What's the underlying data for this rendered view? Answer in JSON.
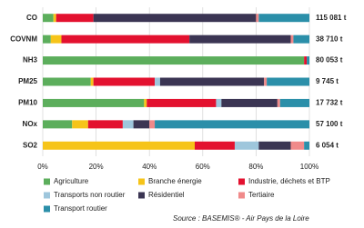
{
  "chart_data": {
    "type": "stacked-bar-horizontal",
    "categories": [
      "CO",
      "COVNM",
      "NH3",
      "PM25",
      "PM10",
      "NOx",
      "SO2"
    ],
    "totals": [
      "115 081 t",
      "38 710 t",
      "80 053 t",
      "9 745 t",
      "17 732 t",
      "57 100 t",
      "6 054 t"
    ],
    "series": [
      {
        "name": "Agriculture",
        "color": "#5cae5c",
        "values": [
          4,
          3,
          98,
          18,
          38,
          11,
          0
        ]
      },
      {
        "name": "Branche énergie",
        "color": "#f6c419",
        "values": [
          1,
          4,
          0,
          1,
          1,
          6,
          57
        ]
      },
      {
        "name": "Industrie, déchets et BTP",
        "color": "#e3112f",
        "values": [
          14,
          48,
          1,
          23,
          26,
          13,
          15
        ]
      },
      {
        "name": "Transports non routier",
        "color": "#9ec6dc",
        "values": [
          0,
          0,
          0,
          2,
          2,
          4,
          9
        ]
      },
      {
        "name": "Résidentiel",
        "color": "#3b3553",
        "values": [
          61,
          38,
          0,
          39,
          21,
          6,
          12
        ]
      },
      {
        "name": "Tertiaire",
        "color": "#f08a8a",
        "values": [
          1,
          1,
          0,
          1,
          1,
          2,
          5
        ]
      },
      {
        "name": "Transport routier",
        "color": "#2b8fa9",
        "values": [
          19,
          6,
          1,
          16,
          11,
          58,
          2
        ]
      }
    ],
    "xlim": [
      0,
      100
    ],
    "xticks": [
      {
        "value": 0,
        "label": "0%"
      },
      {
        "value": 20,
        "label": "20%"
      },
      {
        "value": 40,
        "label": "40%"
      },
      {
        "value": 60,
        "label": "60%"
      },
      {
        "value": 80,
        "label": "80%"
      },
      {
        "value": 100,
        "label": "100%"
      }
    ],
    "grid": true,
    "source": "Source : BASEMIS® - Air Pays de la Loire"
  }
}
